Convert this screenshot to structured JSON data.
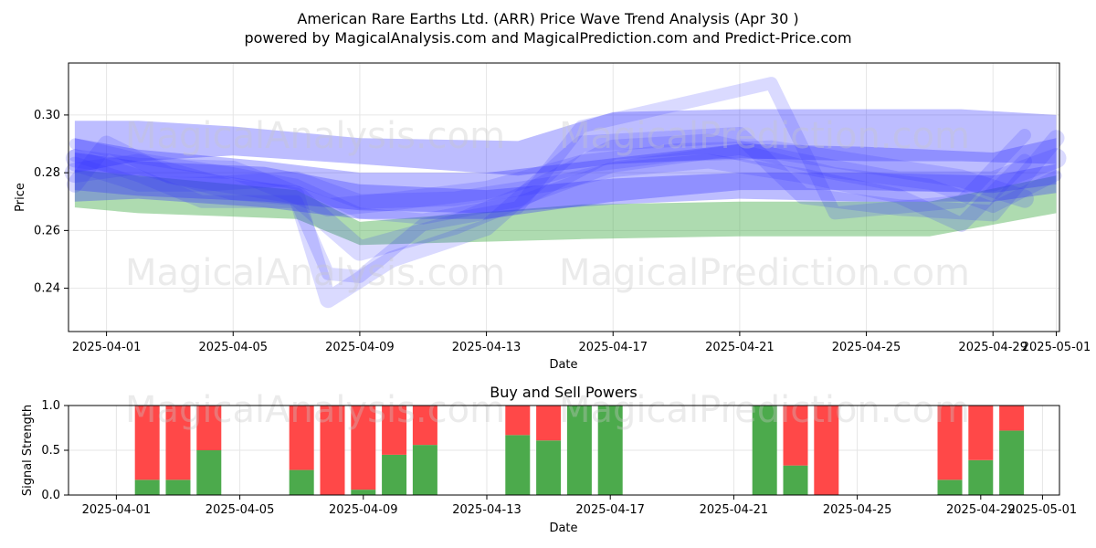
{
  "header": {
    "title": "American Rare Earths Ltd. (ARR) Price Wave Trend Analysis (Apr 30 )",
    "subtitle": "powered by MagicalAnalysis.com and MagicalPrediction.com and Predict-Price.com"
  },
  "watermarks": [
    "MagicalAnalysis.com",
    "MagicalPrediction.com"
  ],
  "colors": {
    "wave_blue": "#3333ff",
    "wave_green": "#4caf50",
    "buy": "#4caa4c",
    "sell": "#ff4848"
  },
  "chart_data": [
    {
      "type": "area",
      "title": "",
      "xlabel": "Date",
      "ylabel": "Price",
      "x_range": [
        "2025-03-31",
        "2025-05-01"
      ],
      "ylim": [
        0.225,
        0.318
      ],
      "x_ticks": [
        "2025-04-01",
        "2025-04-05",
        "2025-04-09",
        "2025-04-13",
        "2025-04-17",
        "2025-04-21",
        "2025-04-25",
        "2025-04-29",
        "2025-05-01"
      ],
      "y_ticks": [
        "0.24",
        "0.26",
        "0.28",
        "0.30"
      ],
      "grid": true,
      "bands": [
        {
          "color": "green",
          "x": [
            "2025-03-31",
            "2025-04-02",
            "2025-04-07",
            "2025-04-09",
            "2025-04-16",
            "2025-04-21",
            "2025-04-27",
            "2025-05-01"
          ],
          "upper": [
            0.281,
            0.279,
            0.274,
            0.263,
            0.269,
            0.27,
            0.27,
            0.279
          ],
          "lower": [
            0.268,
            0.266,
            0.264,
            0.255,
            0.257,
            0.258,
            0.258,
            0.266
          ]
        },
        {
          "color": "blue",
          "x": [
            "2025-03-31",
            "2025-04-02",
            "2025-04-05",
            "2025-04-09",
            "2025-04-14",
            "2025-04-17",
            "2025-04-21",
            "2025-04-25",
            "2025-04-28",
            "2025-05-01"
          ],
          "upper": [
            0.298,
            0.298,
            0.296,
            0.292,
            0.291,
            0.301,
            0.302,
            0.302,
            0.302,
            0.3
          ],
          "lower": [
            0.28,
            0.284,
            0.286,
            0.283,
            0.279,
            0.283,
            0.285,
            0.284,
            0.284,
            0.283
          ]
        },
        {
          "color": "blue",
          "x": [
            "2025-03-31",
            "2025-04-02",
            "2025-04-06",
            "2025-04-09",
            "2025-04-13",
            "2025-04-17",
            "2025-04-21",
            "2025-04-25",
            "2025-04-29",
            "2025-05-01"
          ],
          "upper": [
            0.292,
            0.288,
            0.284,
            0.28,
            0.28,
            0.285,
            0.29,
            0.289,
            0.287,
            0.292
          ],
          "lower": [
            0.27,
            0.271,
            0.268,
            0.264,
            0.264,
            0.27,
            0.274,
            0.274,
            0.273,
            0.276
          ]
        },
        {
          "color": "blue",
          "x": [
            "2025-03-31",
            "2025-04-02",
            "2025-04-06",
            "2025-04-09",
            "2025-04-13",
            "2025-04-17",
            "2025-04-21",
            "2025-04-25",
            "2025-04-29",
            "2025-05-01"
          ],
          "upper": [
            0.287,
            0.284,
            0.282,
            0.276,
            0.274,
            0.278,
            0.28,
            0.28,
            0.279,
            0.283
          ],
          "lower": [
            0.274,
            0.272,
            0.27,
            0.267,
            0.266,
            0.269,
            0.271,
            0.27,
            0.27,
            0.273
          ]
        }
      ],
      "waves": [
        {
          "x": [
            "2025-03-31",
            "2025-04-02",
            "2025-04-04",
            "2025-04-07",
            "2025-04-08",
            "2025-04-09",
            "2025-04-11",
            "2025-04-14",
            "2025-04-16",
            "2025-04-22",
            "2025-04-24",
            "2025-04-28",
            "2025-04-30"
          ],
          "y": [
            0.286,
            0.279,
            0.27,
            0.27,
            0.245,
            0.244,
            0.262,
            0.268,
            0.296,
            0.311,
            0.266,
            0.27,
            0.293
          ]
        },
        {
          "x": [
            "2025-03-31",
            "2025-04-01",
            "2025-04-03",
            "2025-04-07",
            "2025-04-08",
            "2025-04-10",
            "2025-04-13",
            "2025-04-16",
            "2025-04-21",
            "2025-04-23",
            "2025-04-26",
            "2025-04-29",
            "2025-05-01"
          ],
          "y": [
            0.276,
            0.29,
            0.279,
            0.272,
            0.236,
            0.25,
            0.261,
            0.29,
            0.293,
            0.272,
            0.268,
            0.266,
            0.292
          ]
        },
        {
          "x": [
            "2025-03-31",
            "2025-04-02",
            "2025-04-05",
            "2025-04-07",
            "2025-04-09",
            "2025-04-12",
            "2025-04-14",
            "2025-04-17",
            "2025-04-20",
            "2025-04-23",
            "2025-04-26",
            "2025-04-29",
            "2025-05-01"
          ],
          "y": [
            0.28,
            0.283,
            0.274,
            0.272,
            0.253,
            0.262,
            0.271,
            0.288,
            0.29,
            0.283,
            0.277,
            0.277,
            0.285
          ]
        },
        {
          "x": [
            "2025-03-31",
            "2025-04-02",
            "2025-04-05",
            "2025-04-07",
            "2025-04-09",
            "2025-04-11",
            "2025-04-14",
            "2025-04-17",
            "2025-04-21",
            "2025-04-24",
            "2025-04-27",
            "2025-04-29",
            "2025-05-01"
          ],
          "y": [
            0.29,
            0.285,
            0.28,
            0.276,
            0.266,
            0.264,
            0.27,
            0.282,
            0.288,
            0.28,
            0.276,
            0.268,
            0.279
          ]
        },
        {
          "x": [
            "2025-03-31",
            "2025-04-02",
            "2025-04-04",
            "2025-04-07",
            "2025-04-09",
            "2025-04-12",
            "2025-04-15",
            "2025-04-17",
            "2025-04-20",
            "2025-04-23",
            "2025-04-26",
            "2025-04-28",
            "2025-04-30"
          ],
          "y": [
            0.283,
            0.276,
            0.276,
            0.278,
            0.27,
            0.271,
            0.276,
            0.281,
            0.284,
            0.279,
            0.272,
            0.262,
            0.284
          ]
        },
        {
          "x": [
            "2025-03-31",
            "2025-04-02",
            "2025-04-05",
            "2025-04-08",
            "2025-04-10",
            "2025-04-13",
            "2025-04-16",
            "2025-04-19",
            "2025-04-22",
            "2025-04-25",
            "2025-04-28",
            "2025-04-30"
          ],
          "y": [
            0.285,
            0.282,
            0.281,
            0.268,
            0.27,
            0.274,
            0.283,
            0.287,
            0.288,
            0.283,
            0.278,
            0.271
          ]
        }
      ]
    },
    {
      "type": "bar",
      "title": "Buy and Sell Powers",
      "xlabel": "Date",
      "ylabel": "Signal Strength",
      "x_range": [
        "2025-03-31",
        "2025-05-01"
      ],
      "ylim": [
        0,
        1
      ],
      "x_ticks": [
        "2025-04-01",
        "2025-04-05",
        "2025-04-09",
        "2025-04-13",
        "2025-04-17",
        "2025-04-21",
        "2025-04-25",
        "2025-04-29",
        "2025-05-01"
      ],
      "y_ticks": [
        "0.0",
        "0.5",
        "1.0"
      ],
      "grid": true,
      "dates": [
        "2025-04-02",
        "2025-04-03",
        "2025-04-04",
        "2025-04-07",
        "2025-04-08",
        "2025-04-09",
        "2025-04-10",
        "2025-04-11",
        "2025-04-14",
        "2025-04-15",
        "2025-04-16",
        "2025-04-17",
        "2025-04-22",
        "2025-04-23",
        "2025-04-24",
        "2025-04-28",
        "2025-04-29",
        "2025-04-30"
      ],
      "series": [
        {
          "name": "Buy",
          "values": [
            0.17,
            0.17,
            0.5,
            0.28,
            0.0,
            0.06,
            0.45,
            0.56,
            0.67,
            0.61,
            1.0,
            1.0,
            1.0,
            0.33,
            0.0,
            0.17,
            0.39,
            0.72
          ]
        },
        {
          "name": "Sell",
          "values": [
            0.83,
            0.83,
            0.5,
            0.72,
            1.0,
            0.94,
            0.55,
            0.44,
            0.33,
            0.39,
            0.0,
            0.0,
            0.0,
            0.67,
            1.0,
            0.83,
            0.61,
            0.28
          ]
        }
      ]
    }
  ]
}
